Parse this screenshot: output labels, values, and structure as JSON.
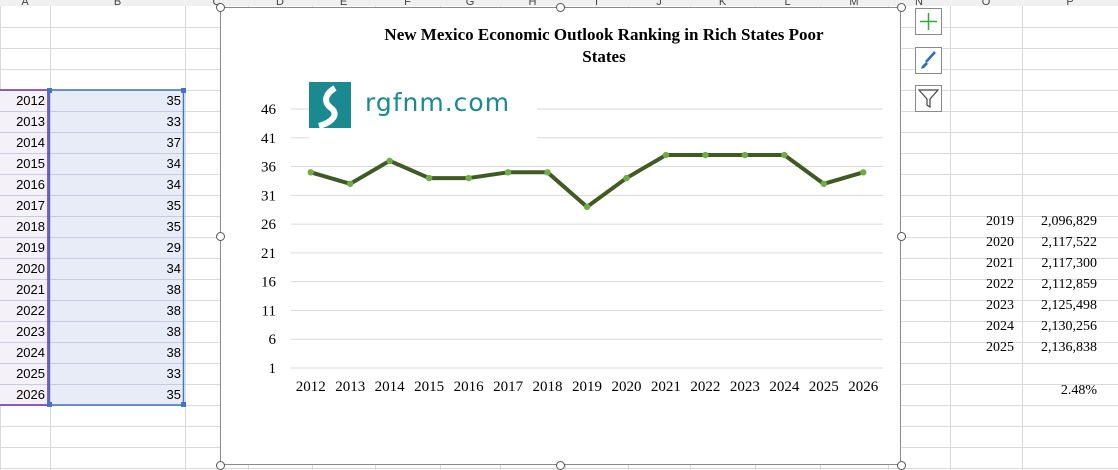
{
  "sheet": {
    "column_headers": [
      "A",
      "B",
      "C",
      "D",
      "E",
      "F",
      "G",
      "H",
      "I",
      "J",
      "K",
      "L",
      "M",
      "N",
      "O",
      "P"
    ],
    "table_rows": [
      {
        "year": "2012",
        "value": "35"
      },
      {
        "year": "2013",
        "value": "33"
      },
      {
        "year": "2014",
        "value": "37"
      },
      {
        "year": "2015",
        "value": "34"
      },
      {
        "year": "2016",
        "value": "34"
      },
      {
        "year": "2017",
        "value": "35"
      },
      {
        "year": "2018",
        "value": "35"
      },
      {
        "year": "2019",
        "value": "29"
      },
      {
        "year": "2020",
        "value": "34"
      },
      {
        "year": "2021",
        "value": "38"
      },
      {
        "year": "2022",
        "value": "38"
      },
      {
        "year": "2023",
        "value": "38"
      },
      {
        "year": "2024",
        "value": "38"
      },
      {
        "year": "2025",
        "value": "33"
      },
      {
        "year": "2026",
        "value": "35"
      }
    ],
    "population_rows": [
      {
        "year": "2019",
        "value": "2,096,829"
      },
      {
        "year": "2020",
        "value": "2,117,522"
      },
      {
        "year": "2021",
        "value": "2,117,300"
      },
      {
        "year": "2022",
        "value": "2,112,859"
      },
      {
        "year": "2023",
        "value": "2,125,498"
      },
      {
        "year": "2024",
        "value": "2,130,256"
      },
      {
        "year": "2025",
        "value": "2,136,838"
      }
    ],
    "growth_percent": "2.48%",
    "colors": {
      "selection_fill": "#e8ecf7",
      "selection_border": "#4472c4",
      "row_header_border": "#7030a0"
    }
  },
  "logo": {
    "text": "rgfnm.com",
    "color": "#1b8a90"
  },
  "side_buttons": [
    {
      "name": "chart-elements-button",
      "icon": "plus-icon"
    },
    {
      "name": "chart-styles-button",
      "icon": "brush-icon"
    },
    {
      "name": "chart-filters-button",
      "icon": "funnel-icon"
    }
  ],
  "chart_data": {
    "type": "line",
    "title": "New Mexico Economic Outlook Ranking in Rich States Poor States",
    "categories": [
      "2012",
      "2013",
      "2014",
      "2015",
      "2016",
      "2017",
      "2018",
      "2019",
      "2020",
      "2021",
      "2022",
      "2023",
      "2024",
      "2025",
      "2026"
    ],
    "values": [
      35,
      33,
      37,
      34,
      34,
      35,
      35,
      29,
      34,
      38,
      38,
      38,
      38,
      33,
      35
    ],
    "yticks": [
      1,
      6,
      11,
      16,
      21,
      26,
      31,
      36,
      41,
      46
    ],
    "ylim": [
      1,
      46
    ],
    "grid": true,
    "line_color": "#3f5a23",
    "marker_color": "#70ad47"
  }
}
